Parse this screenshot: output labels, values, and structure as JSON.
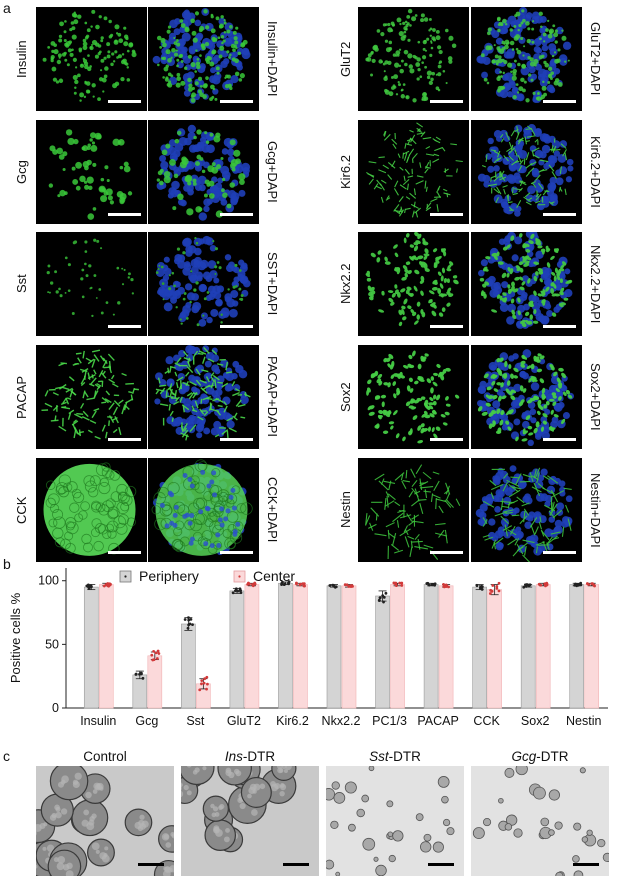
{
  "panel_labels": {
    "a": "a",
    "b": "b",
    "c": "c"
  },
  "panel_a": {
    "left_rows": [
      {
        "marker": "Insulin",
        "merge": "Insulin+DAPI",
        "color": "#38c838",
        "pattern": "dense"
      },
      {
        "marker": "Gcg",
        "merge": "Gcg+DAPI",
        "color": "#3ac83a",
        "pattern": "sparse"
      },
      {
        "marker": "Sst",
        "merge": "SST+DAPI",
        "color": "#2fa02f",
        "pattern": "dots"
      },
      {
        "marker": "PACAP",
        "merge": "PACAP+DAPI",
        "color": "#4ad84a",
        "pattern": "mesh"
      },
      {
        "marker": "CCK",
        "merge": "CCK+DAPI",
        "color": "#56d456",
        "pattern": "solid"
      }
    ],
    "right_rows": [
      {
        "marker": "GluT2",
        "merge": "GluT2+DAPI",
        "color": "#40c840",
        "pattern": "dense"
      },
      {
        "marker": "Kir6.2",
        "merge": "Kir6.2+DAPI",
        "color": "#44cc44",
        "pattern": "cells"
      },
      {
        "marker": "Nkx2.2",
        "merge": "Nkx2.2+DAPI",
        "color": "#42c642",
        "pattern": "nuclei"
      },
      {
        "marker": "Sox2",
        "merge": "Sox2+DAPI",
        "color": "#46cc46",
        "pattern": "nuclei"
      },
      {
        "marker": "Nestin",
        "merge": "Nestin+DAPI",
        "color": "#3cc03c",
        "pattern": "fibers"
      }
    ]
  },
  "chart_data": {
    "type": "bar",
    "ylabel": "Positive cells %",
    "ylim": [
      0,
      110
    ],
    "yticks": [
      "0",
      "50",
      "100"
    ],
    "categories": [
      "Insulin",
      "Gcg",
      "Sst",
      "GluT2",
      "Kir6.2",
      "Nkx2.2",
      "PC1/3",
      "PACAP",
      "CCK",
      "Sox2",
      "Nestin"
    ],
    "series": [
      {
        "name": "Periphery",
        "color": "#d4d4d4",
        "dot_color": "#222222",
        "values": [
          95,
          26,
          66,
          92,
          98,
          96,
          88,
          97,
          95,
          96,
          97
        ],
        "errors": [
          2,
          3,
          5,
          2,
          1,
          1,
          4,
          1,
          2,
          1,
          1
        ]
      },
      {
        "name": "Center",
        "color": "#fbd9da",
        "dot_color": "#d23a3a",
        "values": [
          97,
          41,
          19,
          97,
          97,
          96,
          97,
          96,
          93,
          97,
          97
        ],
        "errors": [
          1,
          3,
          4,
          1,
          1,
          1,
          1,
          1,
          4,
          1,
          1
        ]
      }
    ],
    "legend_position": "top-center"
  },
  "panel_c": {
    "titles": [
      {
        "italic": "",
        "text": "Control"
      },
      {
        "italic": "Ins",
        "text": "-DTR"
      },
      {
        "italic": "Sst",
        "text": "-DTR"
      },
      {
        "italic": "Gcg",
        "text": "-DTR"
      }
    ],
    "conditions": [
      "clusters-large",
      "clusters-large",
      "fragments",
      "fragments"
    ]
  }
}
